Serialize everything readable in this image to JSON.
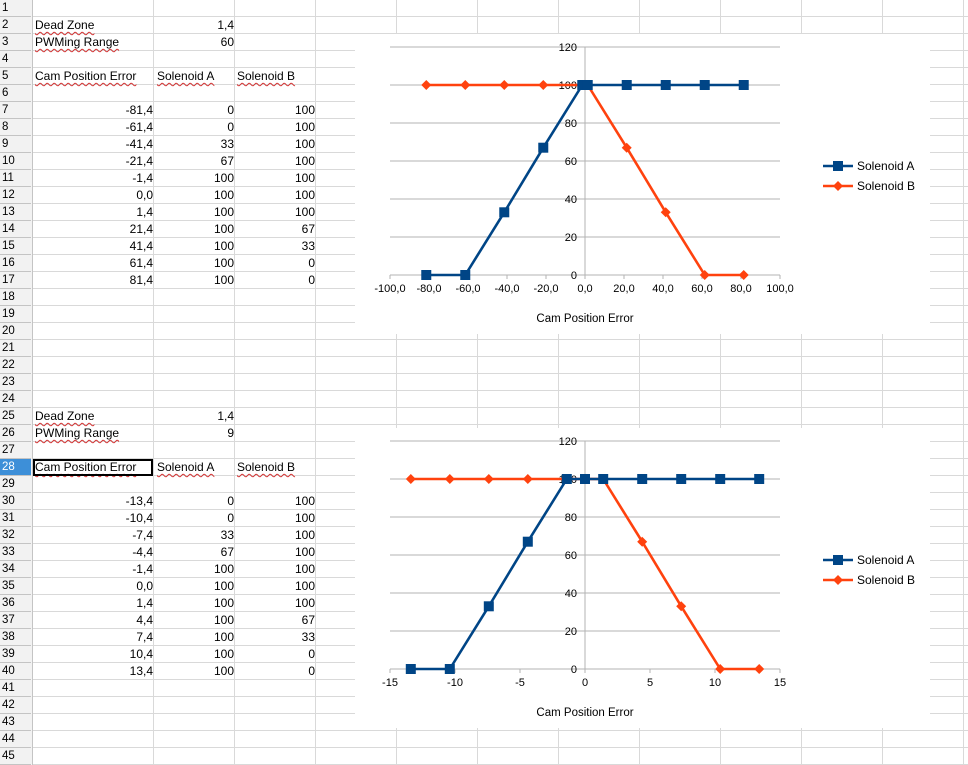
{
  "rows": [
    "1",
    "2",
    "3",
    "4",
    "5",
    "6",
    "7",
    "8",
    "9",
    "10",
    "11",
    "12",
    "13",
    "14",
    "15",
    "16",
    "17",
    "18",
    "19",
    "20",
    "21",
    "22",
    "23",
    "24",
    "25",
    "26",
    "27",
    "28",
    "29",
    "30",
    "31",
    "32",
    "33",
    "34",
    "35",
    "36",
    "37",
    "38",
    "39",
    "40",
    "41",
    "42",
    "43",
    "44",
    "45"
  ],
  "selected_row": "28",
  "table1": {
    "dead_zone_label": "Dead Zone",
    "dead_zone_value": "1,4",
    "pwm_label": "PWMing Range",
    "pwm_value": "60",
    "headers": [
      "Cam Position Error",
      "Solenoid A",
      "Solenoid B"
    ],
    "rows": [
      [
        "-81,4",
        "0",
        "100"
      ],
      [
        "-61,4",
        "0",
        "100"
      ],
      [
        "-41,4",
        "33",
        "100"
      ],
      [
        "-21,4",
        "67",
        "100"
      ],
      [
        "-1,4",
        "100",
        "100"
      ],
      [
        "0,0",
        "100",
        "100"
      ],
      [
        "1,4",
        "100",
        "100"
      ],
      [
        "21,4",
        "100",
        "67"
      ],
      [
        "41,4",
        "100",
        "33"
      ],
      [
        "61,4",
        "100",
        "0"
      ],
      [
        "81,4",
        "100",
        "0"
      ]
    ]
  },
  "table2": {
    "dead_zone_label": "Dead Zone",
    "dead_zone_value": "1,4",
    "pwm_label": "PWMing Range",
    "pwm_value": "9",
    "headers": [
      "Cam Position Error",
      "Solenoid A",
      "Solenoid B"
    ],
    "rows": [
      [
        "-13,4",
        "0",
        "100"
      ],
      [
        "-10,4",
        "0",
        "100"
      ],
      [
        "-7,4",
        "33",
        "100"
      ],
      [
        "-4,4",
        "67",
        "100"
      ],
      [
        "-1,4",
        "100",
        "100"
      ],
      [
        "0,0",
        "100",
        "100"
      ],
      [
        "1,4",
        "100",
        "100"
      ],
      [
        "4,4",
        "100",
        "67"
      ],
      [
        "7,4",
        "100",
        "33"
      ],
      [
        "10,4",
        "100",
        "0"
      ],
      [
        "13,4",
        "100",
        "0"
      ]
    ]
  },
  "chart_data": [
    {
      "type": "line",
      "xlabel": "Cam Position Error",
      "xlim": [
        -100,
        100
      ],
      "xticks": [
        -100,
        -80,
        -60,
        -40,
        -20,
        0,
        20,
        40,
        60,
        80,
        100
      ],
      "xtick_labels": [
        "-100,0",
        "-80,0",
        "-60,0",
        "-40,0",
        "-20,0",
        "0,0",
        "20,0",
        "40,0",
        "60,0",
        "80,0",
        "100,0"
      ],
      "ylim": [
        0,
        120
      ],
      "yticks": [
        0,
        20,
        40,
        60,
        80,
        100,
        120
      ],
      "grid": true,
      "legend": "right",
      "x": [
        -81.4,
        -61.4,
        -41.4,
        -21.4,
        -1.4,
        0,
        1.4,
        21.4,
        41.4,
        61.4,
        81.4
      ],
      "series": [
        {
          "name": "Solenoid A",
          "color": "#004586",
          "marker": "square",
          "values": [
            0,
            0,
            33,
            67,
            100,
            100,
            100,
            100,
            100,
            100,
            100
          ]
        },
        {
          "name": "Solenoid B",
          "color": "#ff420e",
          "marker": "diamond",
          "values": [
            100,
            100,
            100,
            100,
            100,
            100,
            100,
            67,
            33,
            0,
            0
          ]
        }
      ]
    },
    {
      "type": "line",
      "xlabel": "Cam Position Error",
      "xlim": [
        -15,
        15
      ],
      "xticks": [
        -15,
        -10,
        -5,
        0,
        5,
        10,
        15
      ],
      "xtick_labels": [
        "-15",
        "-10",
        "-5",
        "0",
        "5",
        "10",
        "15"
      ],
      "ylim": [
        0,
        120
      ],
      "yticks": [
        0,
        20,
        40,
        60,
        80,
        100,
        120
      ],
      "grid": true,
      "legend": "right",
      "x": [
        -13.4,
        -10.4,
        -7.4,
        -4.4,
        -1.4,
        0,
        1.4,
        4.4,
        7.4,
        10.4,
        13.4
      ],
      "series": [
        {
          "name": "Solenoid A",
          "color": "#004586",
          "marker": "square",
          "values": [
            0,
            0,
            33,
            67,
            100,
            100,
            100,
            100,
            100,
            100,
            100
          ]
        },
        {
          "name": "Solenoid B",
          "color": "#ff420e",
          "marker": "diamond",
          "values": [
            100,
            100,
            100,
            100,
            100,
            100,
            100,
            67,
            33,
            0,
            0
          ]
        }
      ]
    }
  ]
}
